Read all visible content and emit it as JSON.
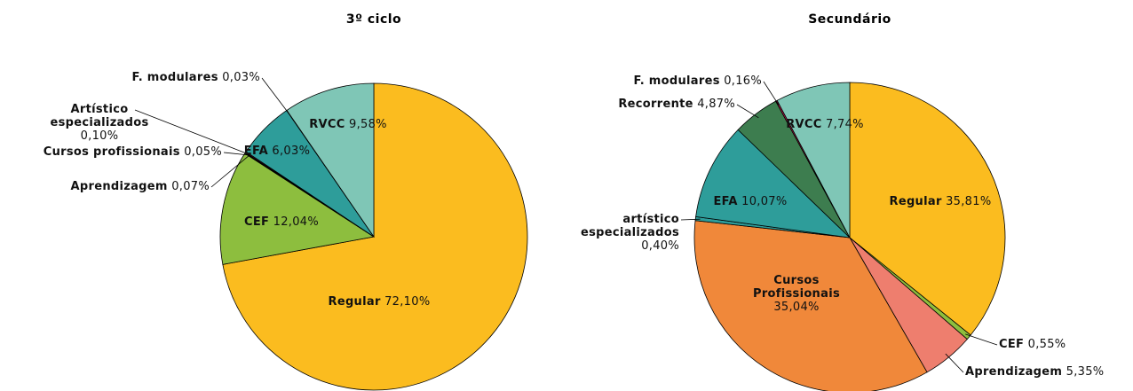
{
  "chart_data": [
    {
      "type": "pie",
      "title": "3º ciclo",
      "categories": [
        "Regular",
        "CEF",
        "Aprendizagem",
        "Cursos profissionais",
        "Artístico especializados",
        "EFA",
        "F. modulares",
        "RVCC"
      ],
      "values": [
        72.1,
        12.04,
        0.07,
        0.05,
        0.1,
        6.03,
        0.03,
        9.58
      ],
      "value_labels": [
        "72,10%",
        "12,04%",
        "0,07%",
        "0,05%",
        "0,10%",
        "6,03%",
        "0,03%",
        "9,58%"
      ],
      "colors": [
        "#FBBC1F",
        "#8DBE3E",
        "#3D7D4F",
        "#F0883A",
        "#C0174E",
        "#2E9D9A",
        "#EE7E6E",
        "#7FC6B6"
      ]
    },
    {
      "type": "pie",
      "title": "Secundário",
      "categories": [
        "Regular",
        "CEF",
        "Aprendizagem",
        "Cursos Profissionais",
        "artístico especializados",
        "EFA",
        "Recorrente",
        "F. modulares",
        "RVCC"
      ],
      "values": [
        35.81,
        0.55,
        5.35,
        35.04,
        0.4,
        10.07,
        4.87,
        0.16,
        7.74
      ],
      "value_labels": [
        "35,81%",
        "0,55%",
        "5,35%",
        "35,04%",
        "0,40%",
        "10,07%",
        "4,87%",
        "0,16%",
        "7,74%"
      ],
      "colors": [
        "#FBBC1F",
        "#8DBE3E",
        "#EE7E6E",
        "#F0883A",
        "#2E9D9A",
        "#2E9D9A",
        "#3D7D4F",
        "#C0174E",
        "#7FC6B6"
      ]
    }
  ]
}
